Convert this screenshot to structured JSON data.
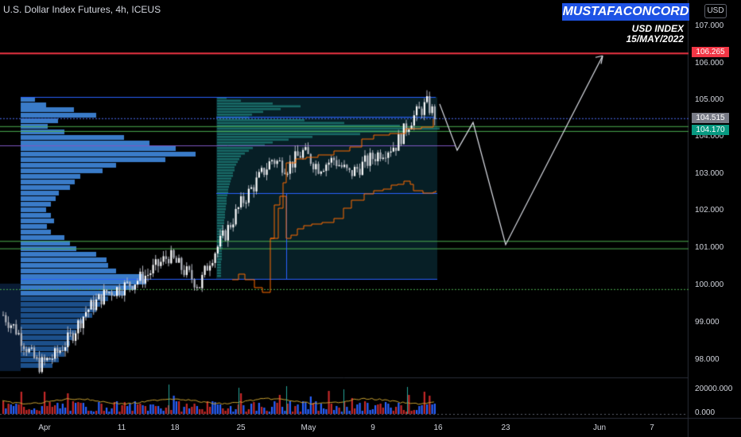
{
  "header": {
    "title": "U.S. Dollar Index Futures, 4h, ICEUS"
  },
  "brand": "MUSTAFACONCORD",
  "currency": "USD",
  "note": {
    "line1": "USD INDEX",
    "line2": "15/MAY/2022"
  },
  "price_axis": {
    "ticks": [
      "107.000",
      "106.000",
      "105.000",
      "104.000",
      "103.000",
      "102.000",
      "101.000",
      "100.000",
      "99.000",
      "98.000"
    ]
  },
  "volume_axis": {
    "ticks": [
      "20000.000",
      "0.000"
    ]
  },
  "time_axis": {
    "ticks": [
      "Apr",
      "11",
      "18",
      "25",
      "May",
      "9",
      "16",
      "23",
      "Jun",
      "7"
    ]
  },
  "price_labels": [
    {
      "value": "106.265",
      "color": "#f23645"
    },
    {
      "value": "104.515",
      "color": "#787b86"
    },
    {
      "value": "104.170",
      "color": "#089981"
    }
  ],
  "colors": {
    "background": "#000000",
    "candle": "#b2b5be",
    "volume_profile": "#2962ff",
    "value_area": "#26a69a",
    "resistance_red": "#f23645",
    "support_green": "#4caf50",
    "level_blue": "#2962ff",
    "vwap_orange": "#ff6d00",
    "projection": "#e0e3eb"
  },
  "chart_data": {
    "type": "candlestick",
    "instrument": "U.S. Dollar Index Futures",
    "timeframe": "4h",
    "ylim": [
      97.6,
      107.5
    ],
    "horizontal_levels": [
      {
        "value": 106.265,
        "color": "red"
      },
      {
        "value": 104.515,
        "color": "blue-dotted"
      },
      {
        "value": 104.17,
        "color": "green"
      },
      {
        "value": 104.3,
        "color": "green"
      },
      {
        "value": 101.2,
        "color": "green"
      },
      {
        "value": 101.0,
        "color": "green"
      },
      {
        "value": 99.9,
        "color": "green"
      }
    ],
    "price_path_anchors": [
      {
        "x": 0,
        "y": 99.2
      },
      {
        "x": 5,
        "y": 98.8
      },
      {
        "x": 11,
        "y": 98.1
      },
      {
        "x": 14,
        "y": 97.85
      },
      {
        "x": 20,
        "y": 98.1
      },
      {
        "x": 26,
        "y": 98.6
      },
      {
        "x": 32,
        "y": 99.3
      },
      {
        "x": 40,
        "y": 99.8
      },
      {
        "x": 48,
        "y": 100.0
      },
      {
        "x": 56,
        "y": 100.3
      },
      {
        "x": 64,
        "y": 100.8
      },
      {
        "x": 70,
        "y": 100.4
      },
      {
        "x": 76,
        "y": 100.0
      },
      {
        "x": 80,
        "y": 100.7
      },
      {
        "x": 86,
        "y": 101.4
      },
      {
        "x": 92,
        "y": 102.2
      },
      {
        "x": 98,
        "y": 102.8
      },
      {
        "x": 104,
        "y": 103.4
      },
      {
        "x": 110,
        "y": 103.2
      },
      {
        "x": 116,
        "y": 103.6
      },
      {
        "x": 122,
        "y": 103.2
      },
      {
        "x": 128,
        "y": 103.4
      },
      {
        "x": 134,
        "y": 103.0
      },
      {
        "x": 140,
        "y": 103.3
      },
      {
        "x": 146,
        "y": 103.6
      },
      {
        "x": 152,
        "y": 103.8
      },
      {
        "x": 158,
        "y": 104.5
      },
      {
        "x": 164,
        "y": 104.9
      },
      {
        "x": 167,
        "y": 104.6
      }
    ],
    "projection_path": [
      104.9,
      103.65,
      104.4,
      101.1,
      106.2
    ]
  }
}
